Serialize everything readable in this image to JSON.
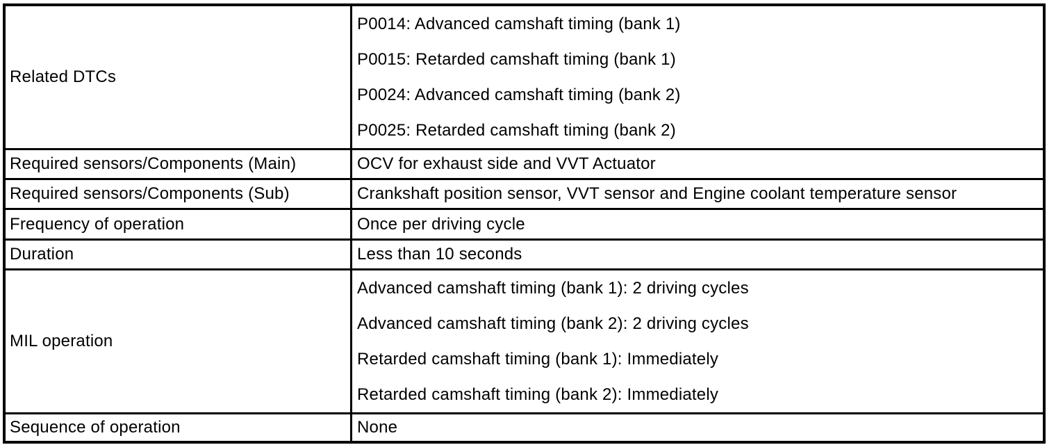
{
  "colors": {
    "background": "#ffffff",
    "border": "#000000",
    "text": "#000000"
  },
  "table": {
    "rows": [
      {
        "label": "Related DTCs",
        "values": [
          "P0014: Advanced camshaft timing (bank 1)",
          "P0015: Retarded camshaft timing (bank 1)",
          "P0024: Advanced camshaft timing (bank 2)",
          "P0025: Retarded camshaft timing (bank 2)"
        ]
      },
      {
        "label": "Required sensors/Components (Main)",
        "values": [
          "OCV for exhaust side and VVT Actuator"
        ]
      },
      {
        "label": "Required sensors/Components (Sub)",
        "values": [
          "Crankshaft position sensor, VVT sensor and Engine coolant temperature sensor"
        ]
      },
      {
        "label": "Frequency of operation",
        "values": [
          "Once per driving cycle"
        ]
      },
      {
        "label": "Duration",
        "values": [
          "Less than 10 seconds"
        ]
      },
      {
        "label": "MIL operation",
        "values": [
          "Advanced camshaft timing (bank 1): 2 driving cycles",
          "Advanced camshaft timing (bank 2): 2 driving cycles",
          "Retarded camshaft timing (bank 1): Immediately",
          "Retarded camshaft timing (bank 2): Immediately"
        ]
      },
      {
        "label": "Sequence of operation",
        "values": [
          "None"
        ]
      }
    ]
  }
}
